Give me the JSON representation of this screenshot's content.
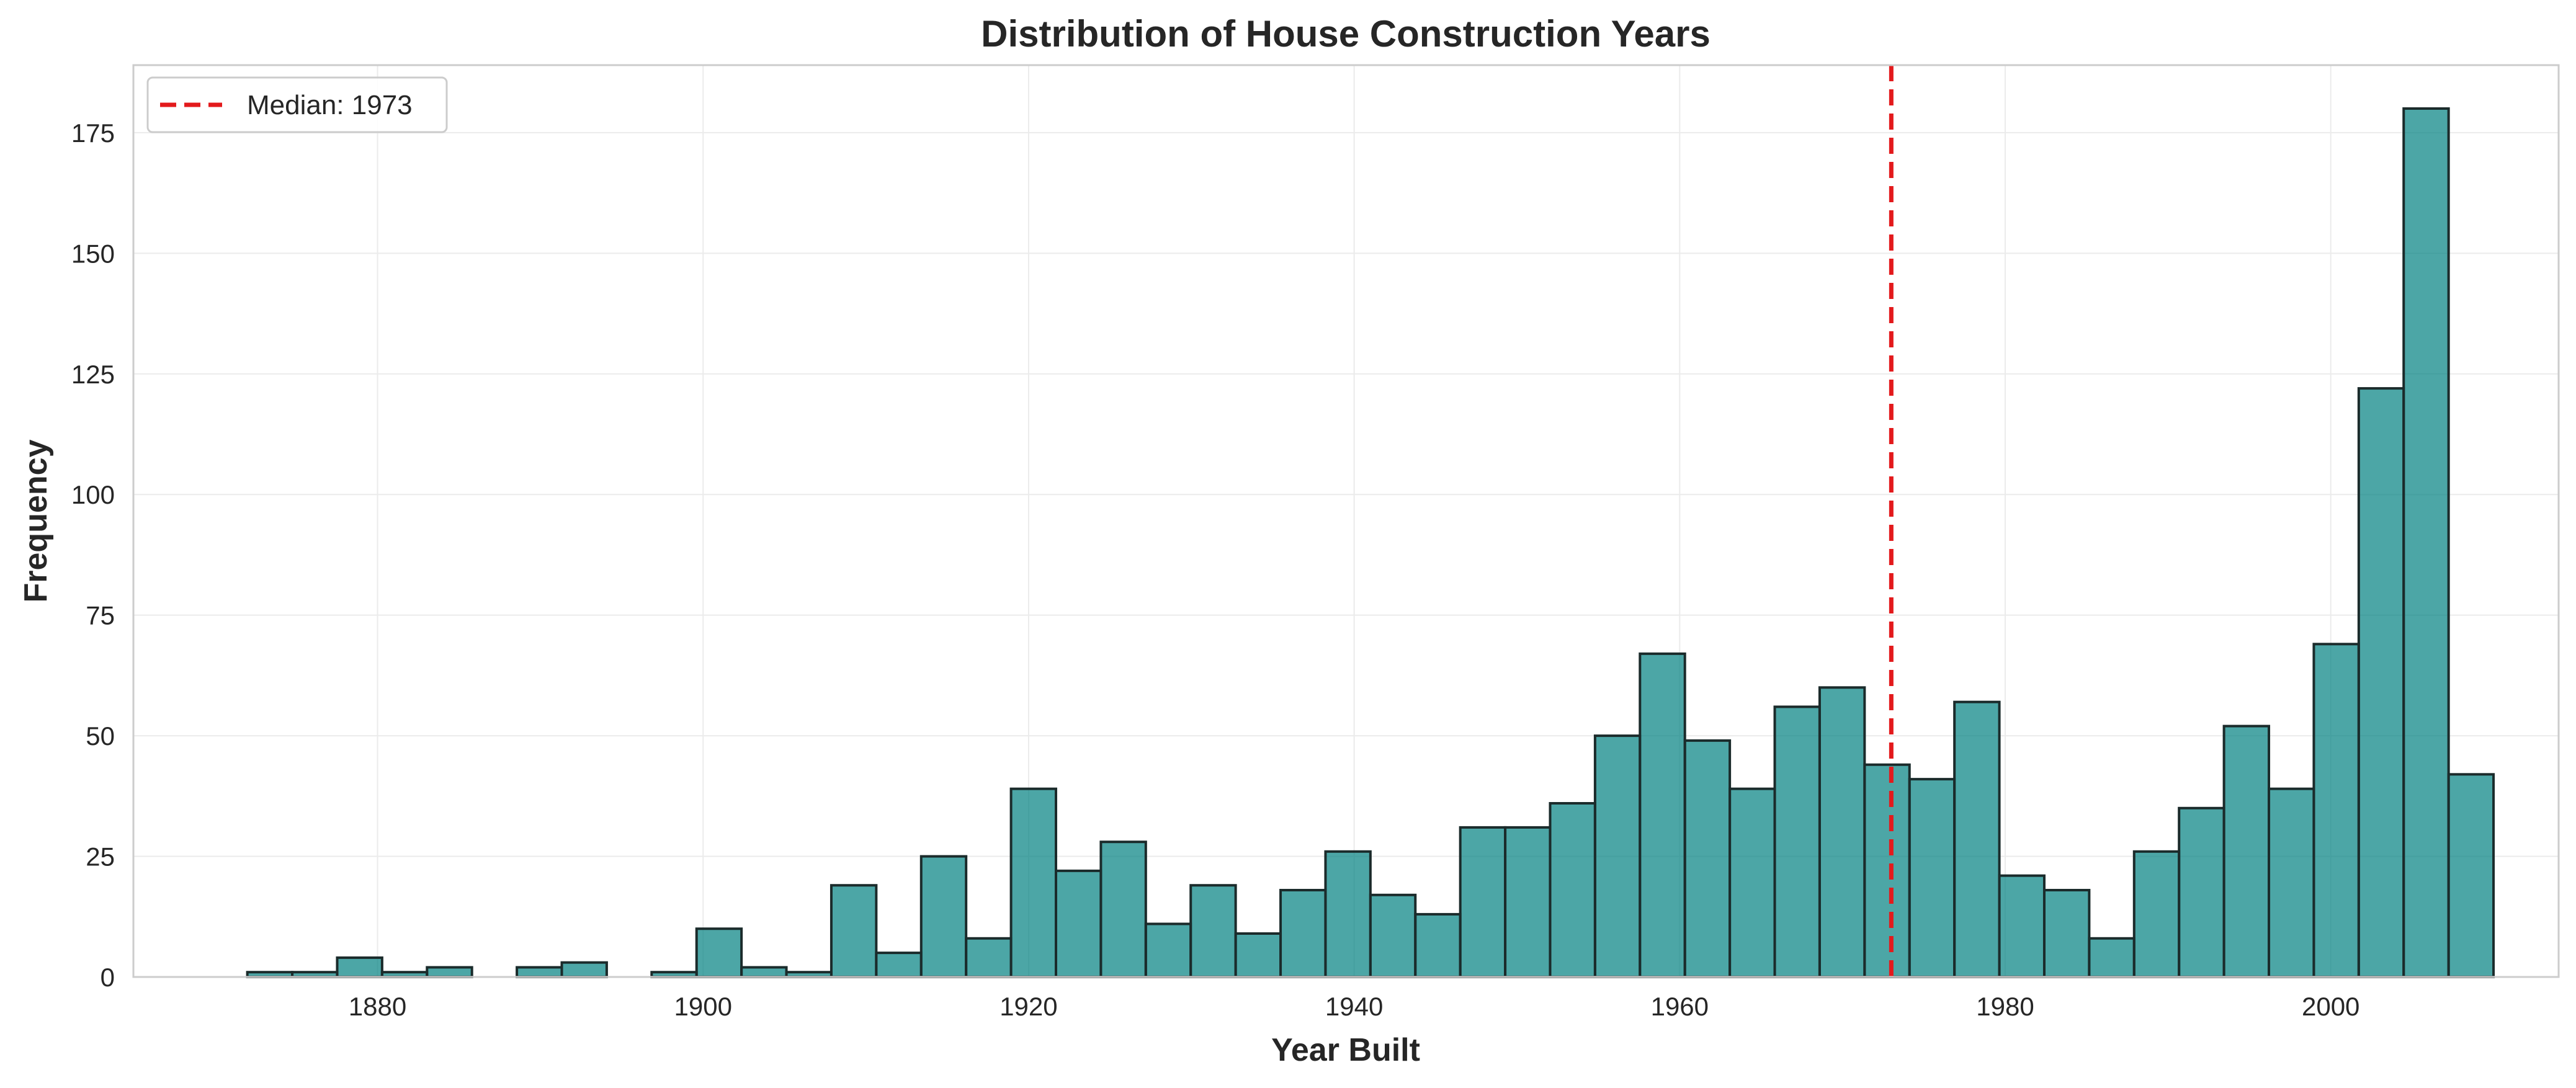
{
  "chart_data": {
    "type": "bar",
    "title": "Distribution of House Construction Years",
    "xlabel": "Year Built",
    "ylabel": "Frequency",
    "xlim": [
      1865,
      2014
    ],
    "ylim": [
      0,
      189
    ],
    "bin_start": 1872,
    "bin_width": 2.76,
    "values": [
      1,
      1,
      4,
      1,
      2,
      0,
      2,
      3,
      0,
      1,
      10,
      2,
      1,
      19,
      5,
      25,
      8,
      39,
      22,
      28,
      11,
      19,
      9,
      18,
      26,
      17,
      13,
      31,
      31,
      36,
      50,
      67,
      49,
      39,
      56,
      60,
      44,
      41,
      57,
      21,
      18,
      8,
      26,
      35,
      52,
      39,
      69,
      122,
      180,
      42
    ],
    "x_ticks": [
      1880,
      1900,
      1920,
      1940,
      1960,
      1980,
      2000
    ],
    "y_ticks": [
      0,
      25,
      50,
      75,
      100,
      125,
      150,
      175
    ],
    "median": 1973,
    "legend": {
      "label": "Median: 1973",
      "position": "top-left"
    },
    "bar_color": "#008080",
    "median_color": "#e31a1c",
    "grid": true
  }
}
